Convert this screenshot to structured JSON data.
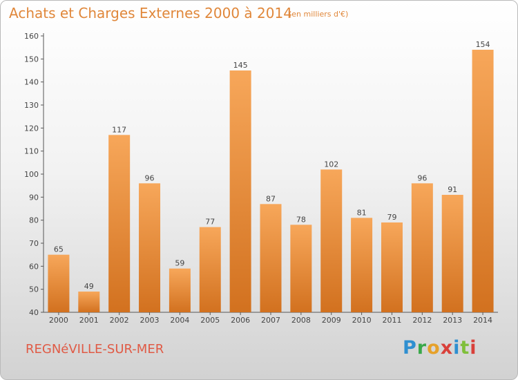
{
  "header": {
    "title": "Achats et Charges Externes 2000 à 2014",
    "unit": "(en milliers d'€)"
  },
  "footer": {
    "town": "REGNéVILLE-SUR-MER",
    "brand_letters": [
      "P",
      "r",
      "o",
      "x",
      "i",
      "t",
      "i"
    ]
  },
  "colors": {
    "bar_top": "#f7a75a",
    "bar_bottom": "#d2711f",
    "title": "#e0873a",
    "town": "#e05a45"
  },
  "chart_data": {
    "type": "bar",
    "categories": [
      "2000",
      "2001",
      "2002",
      "2003",
      "2004",
      "2005",
      "2006",
      "2007",
      "2008",
      "2009",
      "2010",
      "2011",
      "2012",
      "2013",
      "2014"
    ],
    "values": [
      65,
      49,
      117,
      96,
      59,
      77,
      145,
      87,
      78,
      102,
      81,
      79,
      96,
      91,
      154
    ],
    "title": "Achats et Charges Externes 2000 à 2014",
    "xlabel": "",
    "ylabel": "",
    "ylim": [
      40,
      160
    ],
    "yticks": [
      40,
      50,
      60,
      70,
      80,
      90,
      100,
      110,
      120,
      130,
      140,
      150,
      160
    ],
    "grid": false,
    "legend": "none"
  }
}
